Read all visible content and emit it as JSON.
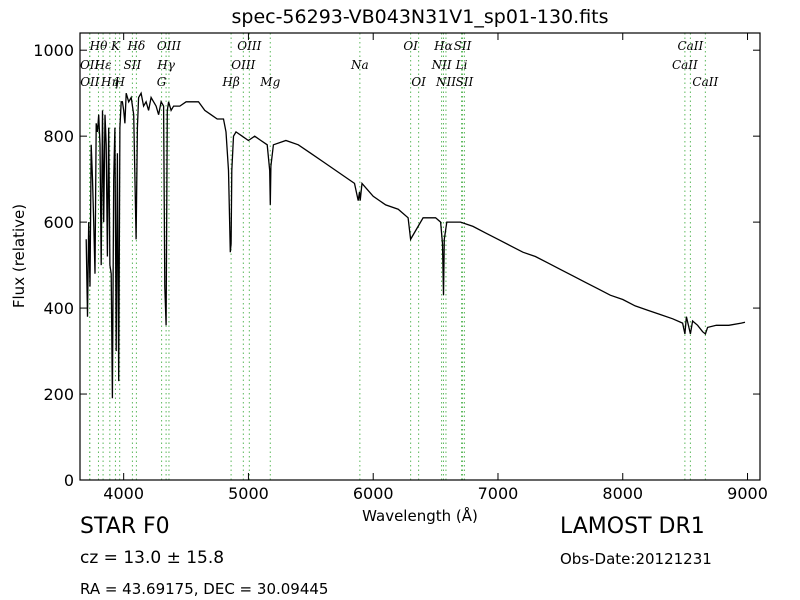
{
  "chart_data": {
    "type": "line",
    "title": "spec-56293-VB043N31V1_sp01-130.fits",
    "xlabel": "Wavelength (Å)",
    "ylabel": "Flux (relative)",
    "xlim": [
      3650,
      9100
    ],
    "ylim": [
      0,
      1040
    ],
    "xticks": [
      4000,
      5000,
      6000,
      7000,
      8000,
      9000
    ],
    "yticks": [
      0,
      200,
      400,
      600,
      800,
      1000
    ],
    "line_color": "#000000",
    "marker_color": "#5cb85c",
    "series": [
      {
        "x": [
          3700,
          3710,
          3720,
          3730,
          3740,
          3750,
          3760,
          3770,
          3780,
          3790,
          3800,
          3810,
          3820,
          3830,
          3840,
          3850,
          3860,
          3870,
          3880,
          3890,
          3900,
          3910,
          3920,
          3930,
          3940,
          3950,
          3960,
          3970,
          3980,
          3990,
          4000,
          4010,
          4020,
          4040,
          4060,
          4080,
          4100,
          4110,
          4120,
          4140,
          4160,
          4180,
          4200,
          4220,
          4240,
          4260,
          4280,
          4300,
          4320,
          4330,
          4340,
          4350,
          4360,
          4380,
          4400,
          4450,
          4500,
          4550,
          4600,
          4650,
          4700,
          4750,
          4800,
          4820,
          4840,
          4855,
          4861,
          4867,
          4880,
          4900,
          4950,
          5000,
          5050,
          5100,
          5150,
          5170,
          5175,
          5180,
          5200,
          5300,
          5400,
          5500,
          5600,
          5700,
          5800,
          5850,
          5880,
          5890,
          5896,
          5910,
          6000,
          6100,
          6200,
          6280,
          6300,
          6320,
          6400,
          6500,
          6540,
          6555,
          6563,
          6570,
          6590,
          6700,
          6800,
          6900,
          7000,
          7100,
          7200,
          7300,
          7400,
          7500,
          7600,
          7700,
          7800,
          7900,
          8000,
          8100,
          8200,
          8300,
          8400,
          8480,
          8498,
          8510,
          8530,
          8542,
          8560,
          8600,
          8640,
          8662,
          8680,
          8750,
          8850,
          8950,
          8980
        ],
        "values": [
          560,
          380,
          600,
          450,
          780,
          700,
          600,
          480,
          830,
          810,
          850,
          780,
          500,
          860,
          600,
          850,
          780,
          520,
          820,
          500,
          480,
          190,
          700,
          820,
          300,
          760,
          230,
          820,
          880,
          880,
          860,
          830,
          900,
          880,
          890,
          850,
          560,
          820,
          890,
          900,
          870,
          880,
          860,
          890,
          880,
          870,
          850,
          880,
          870,
          450,
          360,
          860,
          880,
          860,
          870,
          870,
          880,
          880,
          880,
          860,
          850,
          840,
          840,
          810,
          720,
          530,
          550,
          720,
          800,
          810,
          800,
          790,
          800,
          790,
          780,
          720,
          640,
          730,
          780,
          790,
          780,
          760,
          740,
          720,
          700,
          690,
          650,
          670,
          650,
          690,
          660,
          640,
          630,
          610,
          560,
          570,
          610,
          610,
          600,
          550,
          430,
          560,
          600,
          600,
          590,
          575,
          560,
          545,
          530,
          520,
          505,
          490,
          475,
          460,
          445,
          430,
          420,
          405,
          395,
          385,
          375,
          365,
          340,
          380,
          355,
          340,
          370,
          360,
          345,
          340,
          355,
          360,
          360,
          365,
          367
        ]
      }
    ],
    "lines": [
      {
        "label": "Hθ",
        "x": 3798,
        "row": 0
      },
      {
        "label": "K",
        "x": 3934,
        "row": 0
      },
      {
        "label": "Hδ",
        "x": 4102,
        "row": 0
      },
      {
        "label": "OIII",
        "x": 4363,
        "row": 0
      },
      {
        "label": "OIII",
        "x": 5007,
        "row": 0
      },
      {
        "label": "OI",
        "x": 6300,
        "row": 0
      },
      {
        "label": "Hα",
        "x": 6563,
        "row": 0
      },
      {
        "label": "SII",
        "x": 6716,
        "row": 0
      },
      {
        "label": "CaII",
        "x": 8542,
        "row": 0
      },
      {
        "label": "OII",
        "x": 3727,
        "row": 1
      },
      {
        "label": "Hε",
        "x": 3835,
        "row": 1
      },
      {
        "label": "SII",
        "x": 4070,
        "row": 1
      },
      {
        "label": "Hγ",
        "x": 4340,
        "row": 1
      },
      {
        "label": "OIII",
        "x": 4959,
        "row": 1
      },
      {
        "label": "Na",
        "x": 5893,
        "row": 1
      },
      {
        "label": "NII",
        "x": 6548,
        "row": 1
      },
      {
        "label": "Li",
        "x": 6708,
        "row": 1
      },
      {
        "label": "CaII",
        "x": 8498,
        "row": 1
      },
      {
        "label": "OII",
        "x": 3729,
        "row": 2
      },
      {
        "label": "Hη",
        "x": 3889,
        "row": 2
      },
      {
        "label": "H",
        "x": 3968,
        "row": 2
      },
      {
        "label": "G",
        "x": 4304,
        "row": 2
      },
      {
        "label": "Hβ",
        "x": 4861,
        "row": 2
      },
      {
        "label": "Mg",
        "x": 5175,
        "row": 2
      },
      {
        "label": "OI",
        "x": 6364,
        "row": 2
      },
      {
        "label": "NII",
        "x": 6583,
        "row": 2
      },
      {
        "label": "SII",
        "x": 6731,
        "row": 2
      },
      {
        "label": "CaII",
        "x": 8662,
        "row": 2
      }
    ]
  },
  "info": {
    "class_text": "STAR   F0",
    "cz_text": "cz = 13.0  ± 15.8",
    "radec_text": "RA = 43.69175, DEC = 30.09445",
    "survey": "LAMOST DR1",
    "obsdate": "Obs-Date:20121231"
  }
}
